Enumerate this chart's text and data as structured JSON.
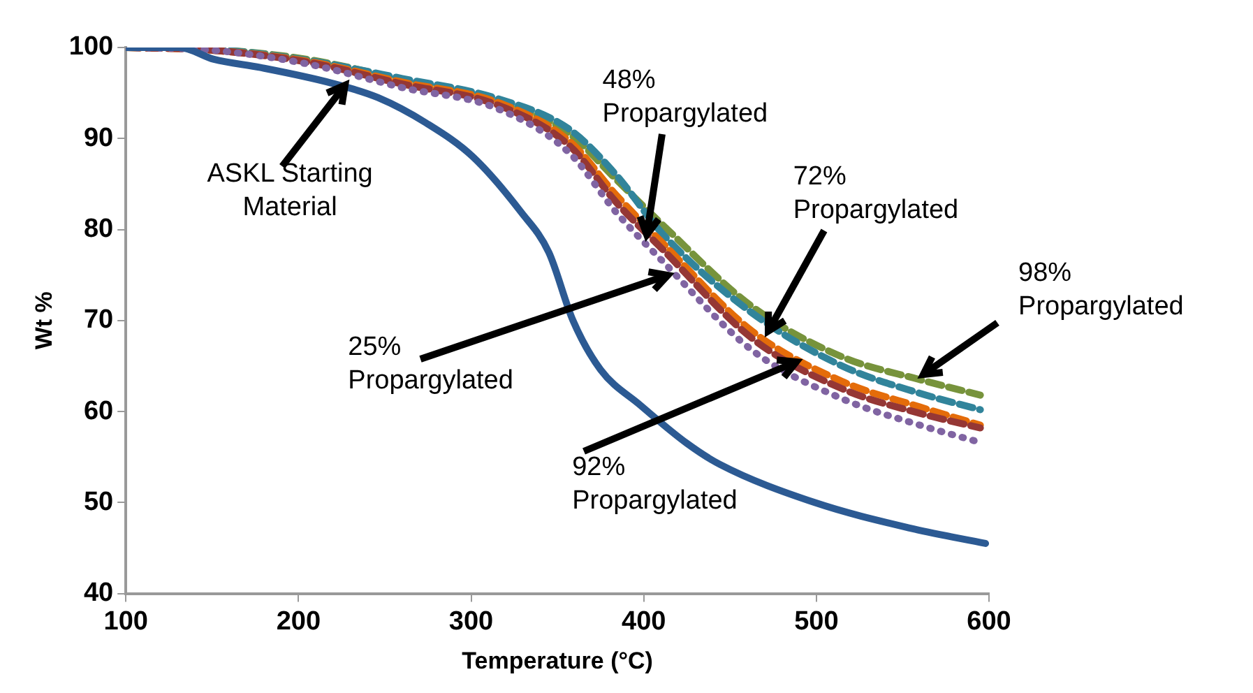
{
  "chart_data": {
    "type": "line",
    "xlabel": "Temperature (°C)",
    "ylabel": "Wt %",
    "x": [
      100,
      150,
      205,
      260,
      315,
      357,
      384,
      411,
      463,
      515,
      560,
      595
    ],
    "xlim": [
      100,
      600
    ],
    "xticks": [
      100,
      200,
      300,
      400,
      500,
      600
    ],
    "ylim": [
      40,
      100
    ],
    "yticks": [
      40,
      50,
      60,
      70,
      80,
      90,
      100
    ],
    "grid": false,
    "legend": false,
    "marker": "none",
    "series": [
      {
        "color": "#2c5a93",
        "line_style": "solid",
        "x": [
          100,
          131,
          151,
          178,
          219,
          246,
          274,
          301,
          329,
          345,
          359,
          375,
          398,
          425,
          444,
          499,
          554,
          598
        ],
        "values": [
          100,
          100,
          98.7,
          97.8,
          96.1,
          94.5,
          91.7,
          88,
          81.9,
          77.5,
          70,
          64.6,
          60.7,
          56.5,
          54.2,
          50,
          47.2,
          45.5
        ]
      },
      {
        "color": "#8064a2",
        "line_style": "dotted",
        "values": [
          100,
          99.7,
          98.2,
          95.6,
          93.3,
          88.4,
          81.9,
          76.5,
          66.7,
          61.4,
          58.5,
          56.6
        ]
      },
      {
        "color": "#953735",
        "line_style": "dashed",
        "values": [
          100,
          99.7,
          98.4,
          96,
          93.7,
          89.2,
          83,
          77.8,
          68,
          62.5,
          59.8,
          58.2
        ]
      },
      {
        "color": "#e46c0a",
        "line_style": "dashed",
        "values": [
          100,
          99.7,
          98.5,
          96.2,
          94,
          89.7,
          83.8,
          78.5,
          68.8,
          63.3,
          60.5,
          58.5
        ]
      },
      {
        "color": "#31849b",
        "line_style": "dashed",
        "values": [
          100,
          99.8,
          98.6,
          96.6,
          94.4,
          91,
          86,
          79.5,
          70.8,
          65,
          62,
          60.2
        ]
      },
      {
        "color": "#77933c",
        "line_style": "dashed",
        "values": [
          100,
          99.8,
          98.7,
          96.5,
          94.2,
          90.5,
          85.5,
          80.5,
          71.5,
          66,
          63.5,
          61.8
        ]
      }
    ],
    "annotations": [
      {
        "text": "ASKL Starting Material",
        "x": 227,
        "y": 95.9
      },
      {
        "text": "48% Propargylated",
        "x": 402,
        "y": 79.5
      },
      {
        "text": "72% Propargylated",
        "x": 472,
        "y": 68.9
      },
      {
        "text": "98% Propargylated",
        "x": 562,
        "y": 64
      },
      {
        "text": "25% Propargylated",
        "x": 414,
        "y": 74.9
      },
      {
        "text": "92% Propargylated",
        "x": 488,
        "y": 65.4
      }
    ]
  }
}
